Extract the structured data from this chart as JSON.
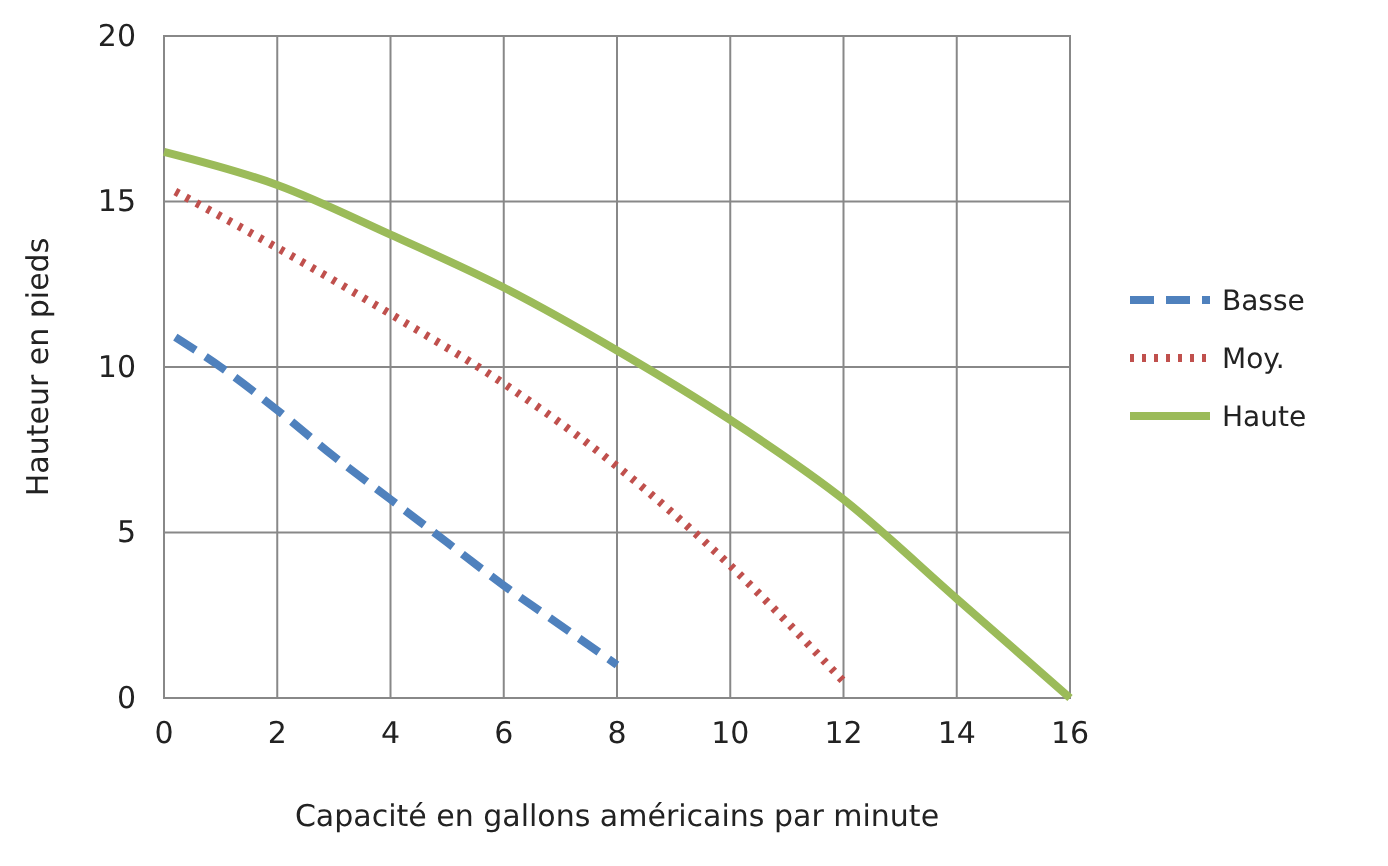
{
  "chart_data": {
    "type": "line",
    "xlabel": "Capacité en gallons américains par minute",
    "ylabel": "Hauteur en pieds",
    "xlim": [
      0,
      16
    ],
    "xticks": [
      0,
      2,
      4,
      6,
      8,
      10,
      12,
      14,
      16
    ],
    "ylim": [
      0,
      20
    ],
    "yticks": [
      0,
      5,
      10,
      15,
      20
    ],
    "grid": true,
    "legend": "right",
    "marker": "none",
    "series": [
      {
        "name": "Basse",
        "color": "#4f81bd",
        "line_style": "dashed",
        "x": [
          0.2,
          1,
          2,
          3,
          4,
          5,
          6,
          7,
          8
        ],
        "values": [
          10.9,
          10,
          8.7,
          7.3,
          6.0,
          4.7,
          3.4,
          2.2,
          1.0
        ]
      },
      {
        "name": "Moy.",
        "color": "#c0504d",
        "line_style": "dotted",
        "x": [
          0.2,
          2,
          4,
          6,
          8,
          10,
          12
        ],
        "values": [
          15.3,
          13.6,
          11.6,
          9.5,
          7.0,
          4.0,
          0.5
        ]
      },
      {
        "name": "Haute",
        "color": "#9bbb59",
        "line_style": "solid",
        "x": [
          0,
          2,
          4,
          6,
          8,
          10,
          12,
          14,
          16
        ],
        "values": [
          16.5,
          15.5,
          14.0,
          12.4,
          10.5,
          8.4,
          6.0,
          3.0,
          0
        ]
      }
    ]
  }
}
